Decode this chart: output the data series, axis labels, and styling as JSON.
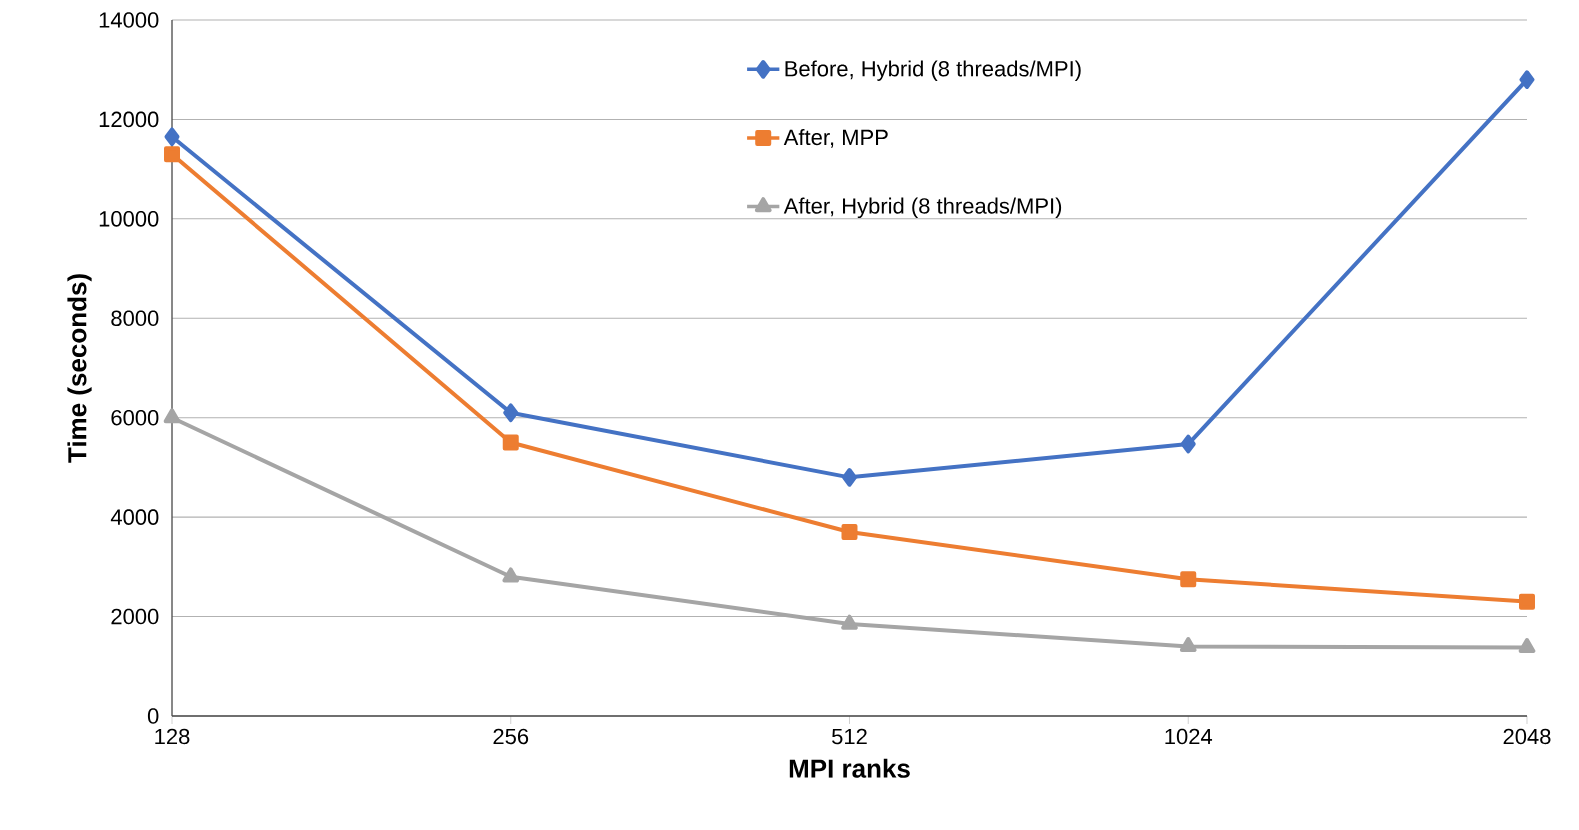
{
  "chart_data": {
    "type": "line",
    "xlabel": "MPI ranks",
    "ylabel": "Time (seconds)",
    "categories": [
      "128",
      "256",
      "512",
      "1024",
      "2048"
    ],
    "series": [
      {
        "name": "Before, Hybrid (8 threads/MPI)",
        "color": "#4472c4",
        "marker": "diamond",
        "values": [
          11650,
          6100,
          4800,
          5470,
          12800
        ]
      },
      {
        "name": "After, MPP",
        "color": "#ed7d31",
        "marker": "square",
        "values": [
          11300,
          5500,
          3700,
          2750,
          2300
        ]
      },
      {
        "name": "After, Hybrid (8 threads/MPI)",
        "color": "#a5a5a5",
        "marker": "triangle",
        "values": [
          6000,
          2800,
          1850,
          1400,
          1380
        ]
      }
    ],
    "ylim": [
      0,
      14000
    ],
    "yticks": [
      0,
      2000,
      4000,
      6000,
      8000,
      10000,
      12000,
      14000
    ],
    "grid": "y",
    "legend": "top",
    "line_style": "solid"
  }
}
